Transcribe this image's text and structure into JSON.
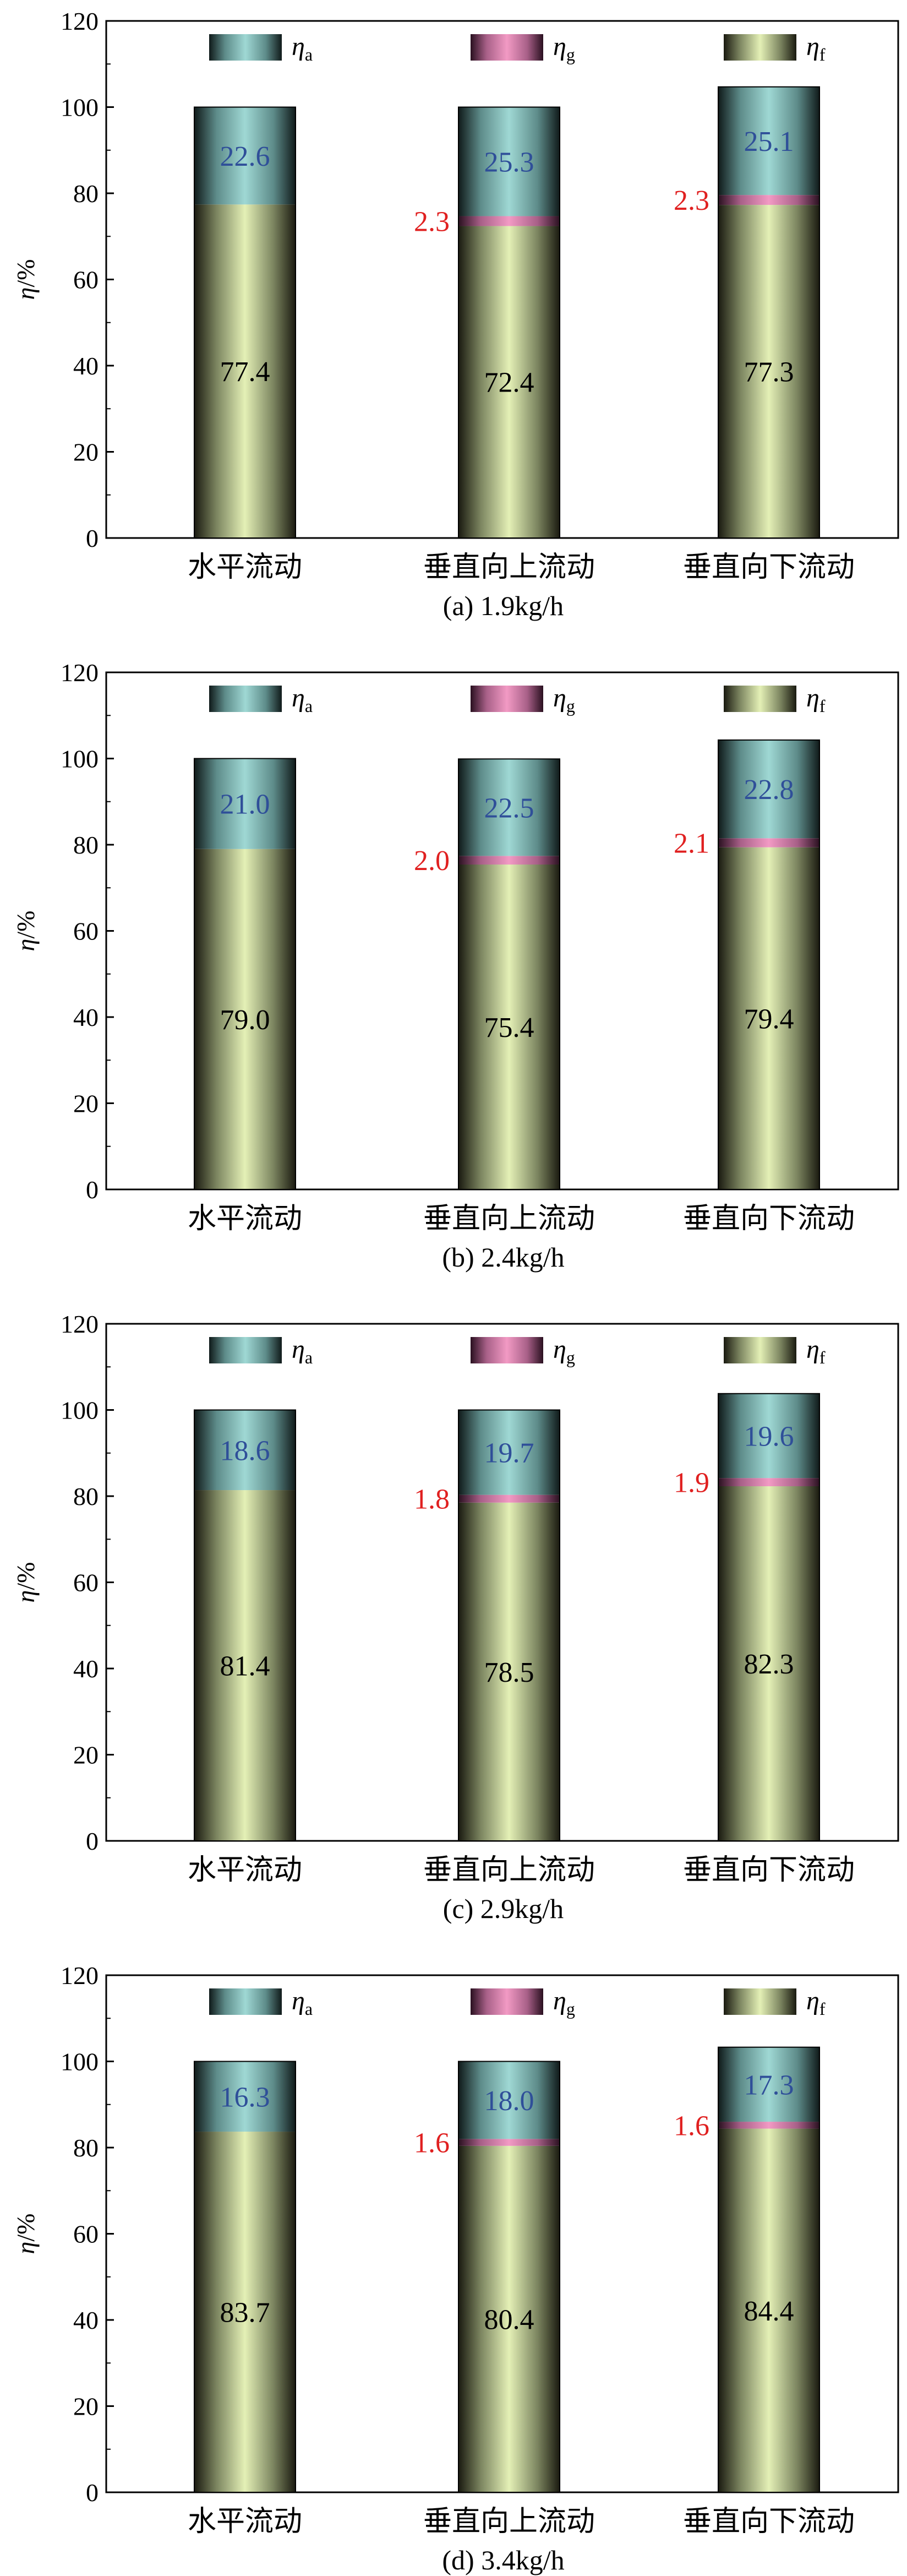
{
  "legend": {
    "symbol": "η",
    "entries": [
      {
        "key": "a",
        "sub": "a",
        "color": "#9fd8d4"
      },
      {
        "key": "g",
        "sub": "g",
        "color": "#f29ac4"
      },
      {
        "key": "f",
        "sub": "f",
        "color": "#e4f0b6"
      }
    ]
  },
  "ylabel_symbol": "η",
  "ylabel_unit": "/%",
  "categories": [
    "水平流动",
    "垂直向上流动",
    "垂直向下流动"
  ],
  "colors": {
    "eta_a": "#9fd8d4",
    "eta_g": "#f29ac4",
    "eta_f": "#e4f0b6",
    "label_blue": "#2f4f99",
    "label_red": "#e02020",
    "label_black": "#000000"
  },
  "chart_data": [
    {
      "type": "bar",
      "stacked": true,
      "caption": "(a) 1.9kg/h",
      "ylim": [
        0,
        120
      ],
      "yticks": [
        0,
        20,
        40,
        60,
        80,
        100,
        120
      ],
      "series": [
        {
          "key": "eta_f",
          "values": [
            77.4,
            72.4,
            77.3
          ],
          "labels": [
            "77.4",
            "72.4",
            "77.3"
          ]
        },
        {
          "key": "eta_g",
          "values": [
            0,
            2.3,
            2.3
          ],
          "labels": [
            "",
            "2.3",
            "2.3"
          ]
        },
        {
          "key": "eta_a",
          "values": [
            22.6,
            25.3,
            25.1
          ],
          "labels": [
            "22.6",
            "25.3",
            "25.1"
          ]
        }
      ]
    },
    {
      "type": "bar",
      "stacked": true,
      "caption": "(b) 2.4kg/h",
      "ylim": [
        0,
        120
      ],
      "yticks": [
        0,
        20,
        40,
        60,
        80,
        100,
        120
      ],
      "series": [
        {
          "key": "eta_f",
          "values": [
            79.0,
            75.4,
            79.4
          ],
          "labels": [
            "79.0",
            "75.4",
            "79.4"
          ]
        },
        {
          "key": "eta_g",
          "values": [
            0,
            2.0,
            2.1
          ],
          "labels": [
            "",
            "2.0",
            "2.1"
          ]
        },
        {
          "key": "eta_a",
          "values": [
            21.0,
            22.5,
            22.8
          ],
          "labels": [
            "21.0",
            "22.5",
            "22.8"
          ]
        }
      ]
    },
    {
      "type": "bar",
      "stacked": true,
      "caption": "(c) 2.9kg/h",
      "ylim": [
        0,
        120
      ],
      "yticks": [
        0,
        20,
        40,
        60,
        80,
        100,
        120
      ],
      "series": [
        {
          "key": "eta_f",
          "values": [
            81.4,
            78.5,
            82.3
          ],
          "labels": [
            "81.4",
            "78.5",
            "82.3"
          ]
        },
        {
          "key": "eta_g",
          "values": [
            0,
            1.8,
            1.9
          ],
          "labels": [
            "",
            "1.8",
            "1.9"
          ]
        },
        {
          "key": "eta_a",
          "values": [
            18.6,
            19.7,
            19.6
          ],
          "labels": [
            "18.6",
            "19.7",
            "19.6"
          ]
        }
      ]
    },
    {
      "type": "bar",
      "stacked": true,
      "caption": "(d) 3.4kg/h",
      "ylim": [
        0,
        120
      ],
      "yticks": [
        0,
        20,
        40,
        60,
        80,
        100,
        120
      ],
      "series": [
        {
          "key": "eta_f",
          "values": [
            83.7,
            80.4,
            84.4
          ],
          "labels": [
            "83.7",
            "80.4",
            "84.4"
          ]
        },
        {
          "key": "eta_g",
          "values": [
            0,
            1.6,
            1.6
          ],
          "labels": [
            "",
            "1.6",
            "1.6"
          ]
        },
        {
          "key": "eta_a",
          "values": [
            16.3,
            18.0,
            17.3
          ],
          "labels": [
            "16.3",
            "18.0",
            "17.3"
          ]
        }
      ]
    }
  ]
}
